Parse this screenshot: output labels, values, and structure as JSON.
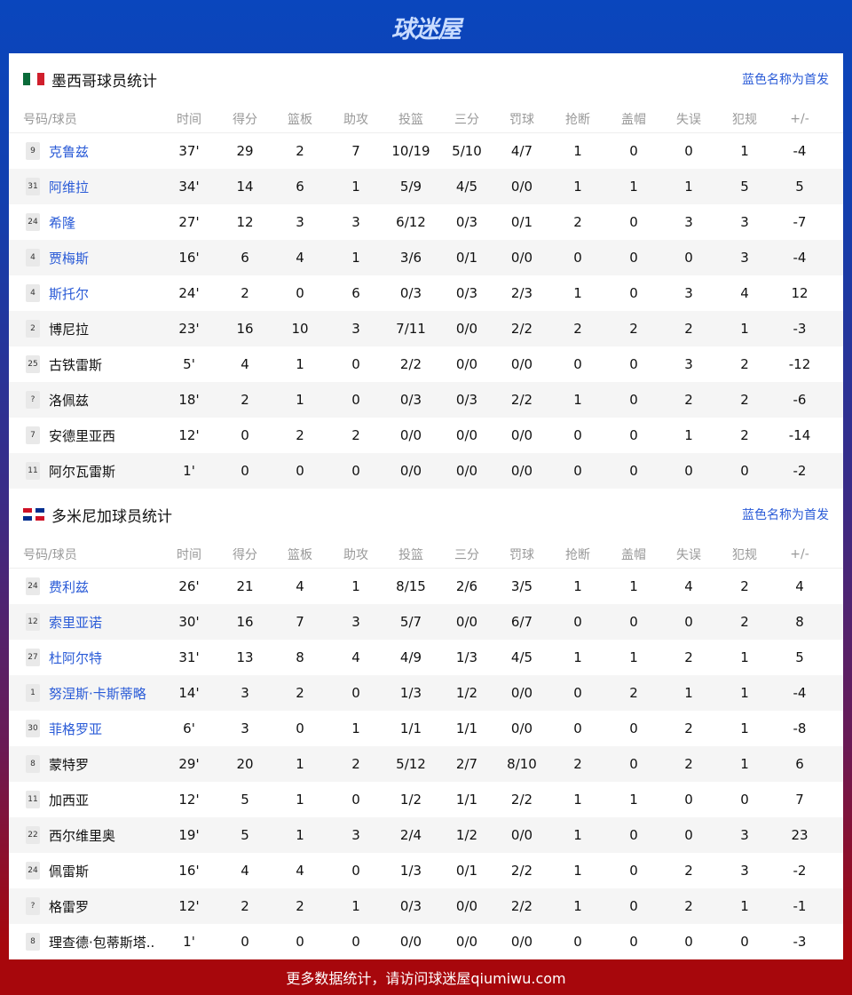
{
  "brand": {
    "logo": "球迷屋"
  },
  "columns": [
    "号码/球员",
    "时间",
    "得分",
    "篮板",
    "助攻",
    "投篮",
    "三分",
    "罚球",
    "抢断",
    "盖帽",
    "失误",
    "犯规",
    "+/-"
  ],
  "teams": [
    {
      "title": "墨西哥球员统计",
      "flag": "mexico-flag",
      "note": "蓝色名称为首发",
      "players": [
        {
          "num": "9",
          "name": "克鲁兹",
          "starter": true,
          "stats": [
            "37'",
            "29",
            "2",
            "7",
            "10/19",
            "5/10",
            "4/7",
            "1",
            "0",
            "0",
            "1",
            "-4"
          ]
        },
        {
          "num": "31",
          "name": "阿维拉",
          "starter": true,
          "stats": [
            "34'",
            "14",
            "6",
            "1",
            "5/9",
            "4/5",
            "0/0",
            "1",
            "1",
            "1",
            "5",
            "5"
          ]
        },
        {
          "num": "24",
          "name": "希隆",
          "starter": true,
          "stats": [
            "27'",
            "12",
            "3",
            "3",
            "6/12",
            "0/3",
            "0/1",
            "2",
            "0",
            "3",
            "3",
            "-7"
          ]
        },
        {
          "num": "4",
          "name": "贾梅斯",
          "starter": true,
          "stats": [
            "16'",
            "6",
            "4",
            "1",
            "3/6",
            "0/1",
            "0/0",
            "0",
            "0",
            "0",
            "3",
            "-4"
          ]
        },
        {
          "num": "4",
          "name": "斯托尔",
          "starter": true,
          "stats": [
            "24'",
            "2",
            "0",
            "6",
            "0/3",
            "0/3",
            "2/3",
            "1",
            "0",
            "3",
            "4",
            "12"
          ]
        },
        {
          "num": "2",
          "name": "博尼拉",
          "starter": false,
          "stats": [
            "23'",
            "16",
            "10",
            "3",
            "7/11",
            "0/0",
            "2/2",
            "2",
            "2",
            "2",
            "1",
            "-3"
          ]
        },
        {
          "num": "25",
          "name": "古铁雷斯",
          "starter": false,
          "stats": [
            "5'",
            "4",
            "1",
            "0",
            "2/2",
            "0/0",
            "0/0",
            "0",
            "0",
            "3",
            "2",
            "-12"
          ]
        },
        {
          "num": "?",
          "name": "洛佩兹",
          "starter": false,
          "stats": [
            "18'",
            "2",
            "1",
            "0",
            "0/3",
            "0/3",
            "2/2",
            "1",
            "0",
            "2",
            "2",
            "-6"
          ]
        },
        {
          "num": "7",
          "name": "安德里亚西",
          "starter": false,
          "stats": [
            "12'",
            "0",
            "2",
            "2",
            "0/0",
            "0/0",
            "0/0",
            "0",
            "0",
            "1",
            "2",
            "-14"
          ]
        },
        {
          "num": "11",
          "name": "阿尔瓦雷斯",
          "starter": false,
          "stats": [
            "1'",
            "0",
            "0",
            "0",
            "0/0",
            "0/0",
            "0/0",
            "0",
            "0",
            "0",
            "0",
            "-2"
          ]
        }
      ]
    },
    {
      "title": "多米尼加球员统计",
      "flag": "dominican-flag",
      "note": "蓝色名称为首发",
      "players": [
        {
          "num": "24",
          "name": "费利兹",
          "starter": true,
          "stats": [
            "26'",
            "21",
            "4",
            "1",
            "8/15",
            "2/6",
            "3/5",
            "1",
            "1",
            "4",
            "2",
            "4"
          ]
        },
        {
          "num": "12",
          "name": "索里亚诺",
          "starter": true,
          "stats": [
            "30'",
            "16",
            "7",
            "3",
            "5/7",
            "0/0",
            "6/7",
            "0",
            "0",
            "0",
            "2",
            "8"
          ]
        },
        {
          "num": "27",
          "name": "杜阿尔特",
          "starter": true,
          "stats": [
            "31'",
            "13",
            "8",
            "4",
            "4/9",
            "1/3",
            "4/5",
            "1",
            "1",
            "2",
            "1",
            "5"
          ]
        },
        {
          "num": "1",
          "name": "努涅斯·卡斯蒂略",
          "starter": true,
          "stats": [
            "14'",
            "3",
            "2",
            "0",
            "1/3",
            "1/2",
            "0/0",
            "0",
            "2",
            "1",
            "1",
            "-4"
          ]
        },
        {
          "num": "30",
          "name": "菲格罗亚",
          "starter": true,
          "stats": [
            "6'",
            "3",
            "0",
            "1",
            "1/1",
            "1/1",
            "0/0",
            "0",
            "0",
            "2",
            "1",
            "-8"
          ]
        },
        {
          "num": "8",
          "name": "蒙特罗",
          "starter": false,
          "stats": [
            "29'",
            "20",
            "1",
            "2",
            "5/12",
            "2/7",
            "8/10",
            "2",
            "0",
            "2",
            "1",
            "6"
          ]
        },
        {
          "num": "11",
          "name": "加西亚",
          "starter": false,
          "stats": [
            "12'",
            "5",
            "1",
            "0",
            "1/2",
            "1/1",
            "2/2",
            "1",
            "1",
            "0",
            "0",
            "7"
          ]
        },
        {
          "num": "22",
          "name": "西尔维里奥",
          "starter": false,
          "stats": [
            "19'",
            "5",
            "1",
            "3",
            "2/4",
            "1/2",
            "0/0",
            "1",
            "0",
            "0",
            "3",
            "23"
          ]
        },
        {
          "num": "24",
          "name": "佩雷斯",
          "starter": false,
          "stats": [
            "16'",
            "4",
            "4",
            "0",
            "1/3",
            "0/1",
            "2/2",
            "1",
            "0",
            "2",
            "3",
            "-2"
          ]
        },
        {
          "num": "?",
          "name": "格雷罗",
          "starter": false,
          "stats": [
            "12'",
            "2",
            "2",
            "1",
            "0/3",
            "0/0",
            "2/2",
            "1",
            "0",
            "2",
            "1",
            "-1"
          ]
        },
        {
          "num": "8",
          "name": "理查德·包蒂斯塔..",
          "starter": false,
          "stats": [
            "1'",
            "0",
            "0",
            "0",
            "0/0",
            "0/0",
            "0/0",
            "0",
            "0",
            "0",
            "0",
            "-3"
          ]
        }
      ]
    }
  ],
  "footer": {
    "text": "更多数据统计，请访问球迷屋qiumiwu.com"
  },
  "colors": {
    "starter": "#2a5bd7",
    "top": "#0a46bd",
    "bottom": "#a7070c"
  }
}
